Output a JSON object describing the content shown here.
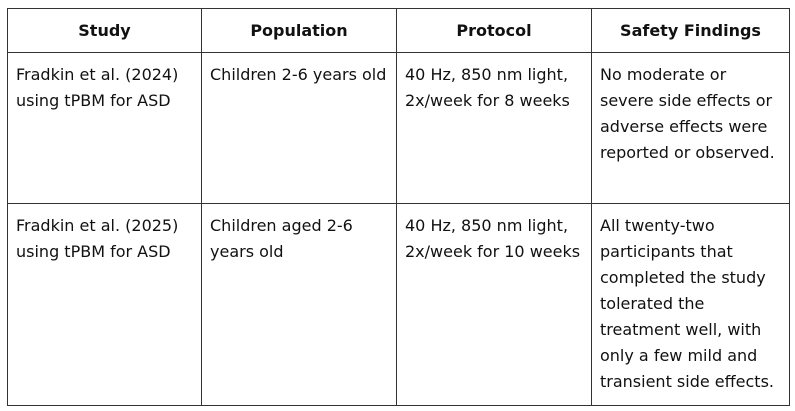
{
  "table": {
    "header": [
      "Study",
      "Population",
      "Protocol",
      "Safety Findings"
    ],
    "rows": [
      [
        "Fradkin et al. (2024) using tPBM for ASD",
        "Children 2-6 years old",
        "40 Hz, 850 nm light, 2x/week for 8 weeks",
        "No moderate or severe side effects or adverse effects were reported or observed."
      ],
      [
        "Fradkin et al. (2025) using tPBM for ASD",
        "Children aged 2-6 years old",
        "40 Hz, 850 nm light, 2x/week for 10 weeks",
        "All twenty-two participants that completed the study tolerated the treatment well, with only a few mild and transient side effects."
      ]
    ]
  }
}
